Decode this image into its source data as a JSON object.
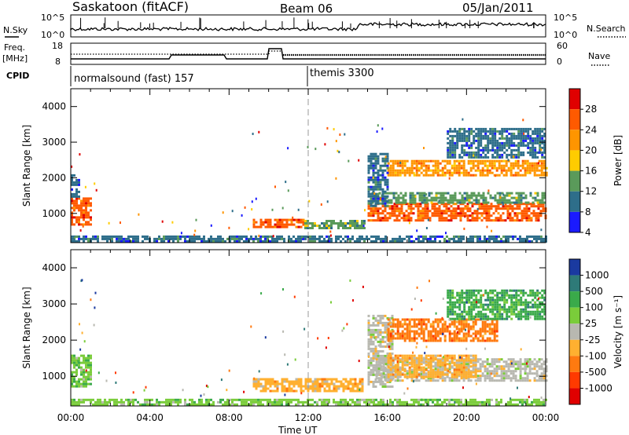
{
  "header": {
    "station": "Saskatoon (fitACF)",
    "beam": "Beam 06",
    "date": "05/Jan/2011"
  },
  "status_panels": {
    "nsky_label": "N.Sky",
    "nsearch_label": "N.Search",
    "noise_ticks": [
      "10^5",
      "10^0"
    ],
    "freq_label": "Freq.",
    "freq_unit": "[MHz]",
    "freq_ticks": [
      "18",
      "8"
    ],
    "nave_label": "Nave",
    "nave_ticks": [
      "60",
      "0"
    ],
    "cpid_label": "CPID",
    "cpid_segments": [
      {
        "name": "normalsound (fast) 157",
        "start": "00:00",
        "end": "12:00"
      },
      {
        "name": "themis 3300",
        "start": "12:00",
        "end": "24:00"
      }
    ]
  },
  "chart_data": [
    {
      "type": "heatmap",
      "panel": "power",
      "ylabel": "Slant Range [km]",
      "ylim": [
        180,
        4500
      ],
      "yticks": [
        1000,
        2000,
        3000,
        4000
      ],
      "colorbar_label": "Power [dB]",
      "colorbar_ticks": [
        "28",
        "24",
        "20",
        "16",
        "12",
        "8",
        "4"
      ],
      "colorbar_colors": [
        "#e00000",
        "#ff5a00",
        "#ff9500",
        "#ffcc00",
        "#5a9a5a",
        "#2e6e8a",
        "#1a1aff"
      ],
      "blobs": [
        {
          "t0": 0.0,
          "t1": 1.0,
          "r0": 700,
          "r1": 1450,
          "level": 24
        },
        {
          "t0": 0.0,
          "t1": 0.4,
          "r0": 1450,
          "r1": 2100,
          "level": 8
        },
        {
          "t0": 9.2,
          "t1": 11.8,
          "r0": 650,
          "r1": 850,
          "level": 24
        },
        {
          "t0": 11.8,
          "t1": 14.8,
          "r0": 600,
          "r1": 820,
          "level": 12
        },
        {
          "t0": 15.0,
          "t1": 24.0,
          "r0": 800,
          "r1": 1300,
          "level": 24
        },
        {
          "t0": 15.2,
          "t1": 24.0,
          "r0": 1300,
          "r1": 1600,
          "level": 12
        },
        {
          "t0": 16.0,
          "t1": 24.0,
          "r0": 2100,
          "r1": 2500,
          "level": 20
        },
        {
          "t0": 15.0,
          "t1": 16.0,
          "r0": 1200,
          "r1": 2700,
          "level": 8
        },
        {
          "t0": 19.0,
          "t1": 24.0,
          "r0": 2600,
          "r1": 3400,
          "level": 8
        },
        {
          "t0": 0.0,
          "t1": 24.0,
          "r0": 200,
          "r1": 380,
          "level": 8
        }
      ]
    },
    {
      "type": "heatmap",
      "panel": "velocity",
      "xlabel": "Time UT",
      "ylabel": "Slant Range [km]",
      "ylim": [
        180,
        4500
      ],
      "yticks": [
        1000,
        2000,
        3000,
        4000
      ],
      "xticks": [
        "00:00",
        "04:00",
        "08:00",
        "12:00",
        "16:00",
        "20:00",
        "00:00"
      ],
      "colorbar_label": "Velocity [m s⁻¹]",
      "colorbar_ticks": [
        "1000",
        "500",
        "100",
        "25",
        "-25",
        "-100",
        "-500",
        "-1000"
      ],
      "colorbar_colors": [
        "#1a3aa0",
        "#2e7a78",
        "#3aaa4a",
        "#7acc3a",
        "#b8b8b0",
        "#ffb030",
        "#ff7a10",
        "#ff3a00",
        "#e00000"
      ],
      "blobs": [
        {
          "t0": 0.0,
          "t1": 1.0,
          "r0": 700,
          "r1": 1600,
          "level": 25
        },
        {
          "t0": 9.2,
          "t1": 14.8,
          "r0": 600,
          "r1": 950,
          "level": -100
        },
        {
          "t0": 15.0,
          "t1": 16.2,
          "r0": 700,
          "r1": 2700,
          "level": 0
        },
        {
          "t0": 15.4,
          "t1": 24.0,
          "r0": 900,
          "r1": 1500,
          "level": 0
        },
        {
          "t0": 16.0,
          "t1": 20.5,
          "r0": 1000,
          "r1": 1600,
          "level": -100
        },
        {
          "t0": 16.0,
          "t1": 21.5,
          "r0": 2000,
          "r1": 2600,
          "level": -500
        },
        {
          "t0": 19.0,
          "t1": 24.0,
          "r0": 2600,
          "r1": 3400,
          "level": 100
        },
        {
          "t0": 0.0,
          "t1": 24.0,
          "r0": 200,
          "r1": 380,
          "level": 25
        }
      ]
    }
  ]
}
